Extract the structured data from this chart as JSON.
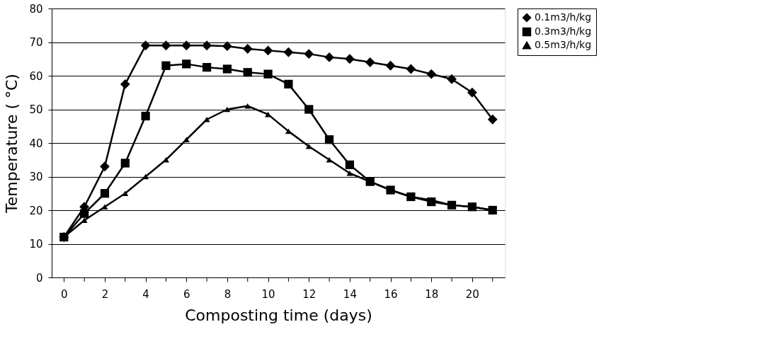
{
  "chart_data": {
    "type": "line",
    "xlabel": "Composting time (days)",
    "ylabel": "Temperature ( °C)",
    "x": [
      0,
      1,
      2,
      3,
      4,
      5,
      6,
      7,
      8,
      9,
      10,
      11,
      12,
      13,
      14,
      15,
      16,
      17,
      18,
      19,
      20,
      21
    ],
    "series": [
      {
        "name": "0.1m3/h/kg",
        "color": "#000000",
        "marker": "diamond",
        "values": [
          12,
          21,
          33,
          57.5,
          69,
          69,
          69,
          69,
          68.8,
          68,
          67.5,
          67,
          66.5,
          65.5,
          65,
          64,
          63,
          62,
          60.5,
          59,
          55,
          47
        ]
      },
      {
        "name": "0.3m3/h/kg",
        "color": "#000000",
        "marker": "square",
        "values": [
          12,
          19,
          25,
          34,
          48,
          63,
          63.5,
          62.5,
          62,
          61,
          60.5,
          57.5,
          50,
          41,
          33.5,
          28.5,
          26,
          24,
          22.5,
          21.5,
          21,
          20
        ]
      },
      {
        "name": "0.5m3/h/kg",
        "color": "#000000",
        "marker": "triangle",
        "values": [
          12,
          17,
          21,
          25,
          30,
          35,
          41,
          47,
          50,
          51,
          48.5,
          43.5,
          39,
          35,
          31,
          28.5,
          26,
          24,
          23,
          21.5,
          21,
          20
        ]
      }
    ],
    "xlim": [
      -0.6,
      21.6
    ],
    "ylim": [
      0,
      80
    ],
    "xticks": [
      0,
      {
        "value": 1,
        "label": null
      },
      2,
      {
        "value": 3,
        "label": null
      },
      4,
      {
        "value": 5,
        "label": null
      },
      6,
      {
        "value": 7,
        "label": null
      },
      8,
      {
        "value": 9,
        "label": null
      },
      10,
      {
        "value": 11,
        "label": null
      },
      12,
      {
        "value": 13,
        "label": null
      },
      14,
      {
        "value": 15,
        "label": null
      },
      16,
      {
        "value": 17,
        "label": null
      },
      18,
      {
        "value": 19,
        "label": null
      },
      20,
      {
        "value": 21,
        "label": null
      }
    ],
    "yticks": [
      0,
      10,
      20,
      30,
      40,
      50,
      60,
      70,
      80
    ],
    "grid": "y",
    "legend": "right",
    "line_style": "solid"
  }
}
